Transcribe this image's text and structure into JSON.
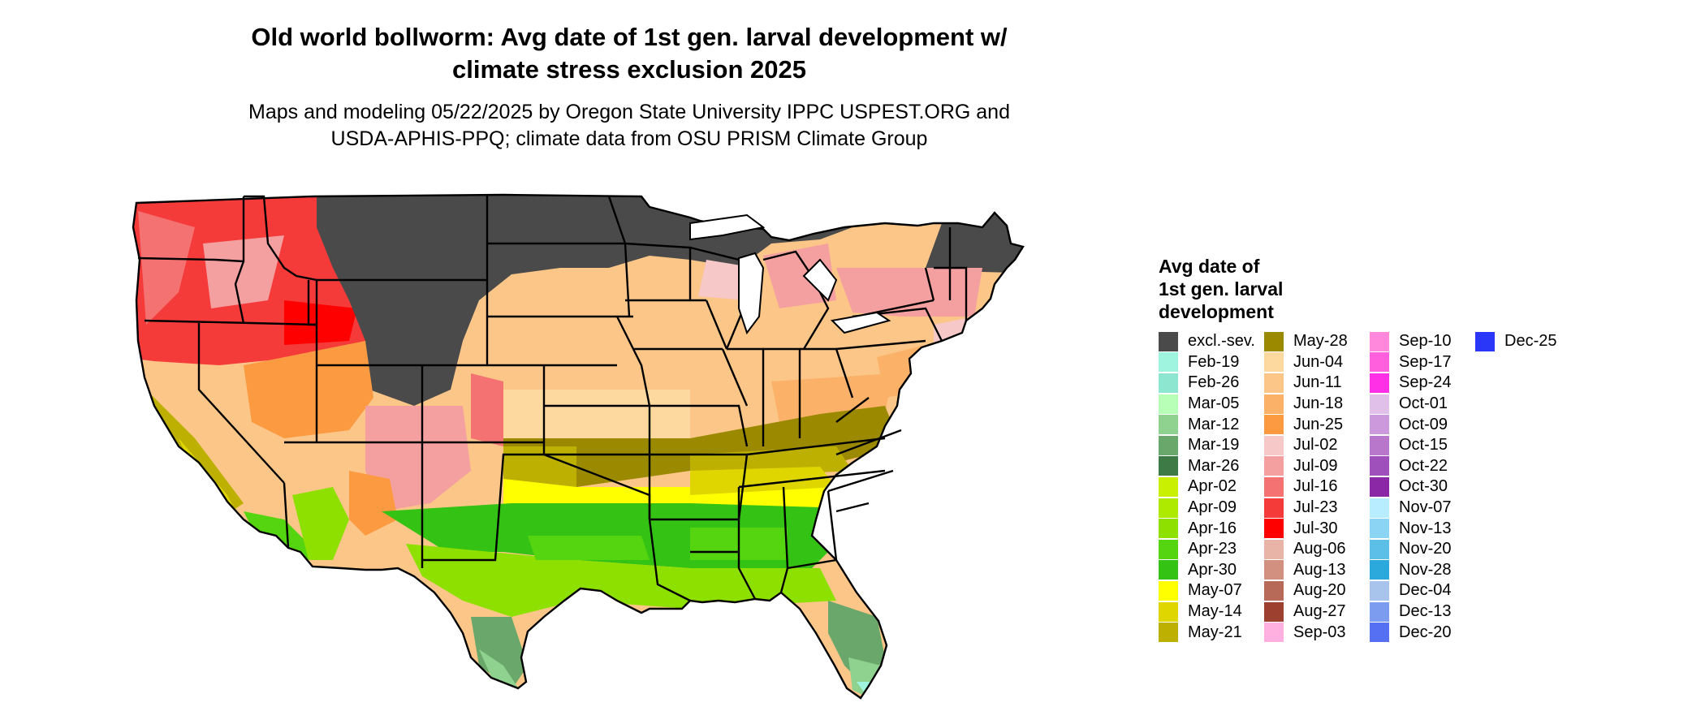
{
  "title_line1": "Old world bollworm: Avg date of 1st gen. larval development w/",
  "title_line2": "climate stress exclusion 2025",
  "subtitle_line1": "Maps and modeling 05/22/2025 by Oregon State University IPPC USPEST.ORG and",
  "subtitle_line2": "USDA-APHIS-PPQ; climate data from OSU PRISM Climate Group",
  "legend": {
    "title_line1": "Avg date of",
    "title_line2": "1st gen. larval",
    "title_line3": "development",
    "items": [
      {
        "label": "excl.-sev.",
        "color": "#4a4a4a"
      },
      {
        "label": "Feb-19",
        "color": "#9ff4e0"
      },
      {
        "label": "Feb-26",
        "color": "#8ce6d0"
      },
      {
        "label": "Mar-05",
        "color": "#b8ffb8"
      },
      {
        "label": "Mar-12",
        "color": "#8fd18f"
      },
      {
        "label": "Mar-19",
        "color": "#69a86a"
      },
      {
        "label": "Mar-26",
        "color": "#3e7a45"
      },
      {
        "label": "Apr-02",
        "color": "#c8f000"
      },
      {
        "label": "Apr-09",
        "color": "#aeea00"
      },
      {
        "label": "Apr-16",
        "color": "#8ee000"
      },
      {
        "label": "Apr-23",
        "color": "#55d410"
      },
      {
        "label": "Apr-30",
        "color": "#34c314"
      },
      {
        "label": "May-07",
        "color": "#ffff00"
      },
      {
        "label": "May-14",
        "color": "#dfd600"
      },
      {
        "label": "May-21",
        "color": "#bdb000"
      },
      {
        "label": "May-28",
        "color": "#9b8a00"
      },
      {
        "label": "Jun-04",
        "color": "#fdd9a0"
      },
      {
        "label": "Jun-11",
        "color": "#fcc688"
      },
      {
        "label": "Jun-18",
        "color": "#fbb268"
      },
      {
        "label": "Jun-25",
        "color": "#fb9a40"
      },
      {
        "label": "Jul-02",
        "color": "#f6c8c8"
      },
      {
        "label": "Jul-09",
        "color": "#f5a0a0"
      },
      {
        "label": "Jul-16",
        "color": "#f57272"
      },
      {
        "label": "Jul-23",
        "color": "#f53a3a"
      },
      {
        "label": "Jul-30",
        "color": "#ff0000"
      },
      {
        "label": "Aug-06",
        "color": "#e8b4a8"
      },
      {
        "label": "Aug-13",
        "color": "#d29080"
      },
      {
        "label": "Aug-20",
        "color": "#b86a58"
      },
      {
        "label": "Aug-27",
        "color": "#9e4030"
      },
      {
        "label": "Sep-03",
        "color": "#ffb0e0"
      },
      {
        "label": "Sep-10",
        "color": "#ff88dd"
      },
      {
        "label": "Sep-17",
        "color": "#ff5fdc"
      },
      {
        "label": "Sep-24",
        "color": "#ff30e6"
      },
      {
        "label": "Oct-01",
        "color": "#e0c0e8"
      },
      {
        "label": "Oct-09",
        "color": "#cc99dd"
      },
      {
        "label": "Oct-15",
        "color": "#b977cc"
      },
      {
        "label": "Oct-22",
        "color": "#a050bb"
      },
      {
        "label": "Oct-30",
        "color": "#8a28a6"
      },
      {
        "label": "Nov-07",
        "color": "#b8ecff"
      },
      {
        "label": "Nov-13",
        "color": "#8cd4f4"
      },
      {
        "label": "Nov-20",
        "color": "#5cbfe8"
      },
      {
        "label": "Nov-28",
        "color": "#2ba8dc"
      },
      {
        "label": "Dec-04",
        "color": "#a8c4ec"
      },
      {
        "label": "Dec-13",
        "color": "#7c9cf0"
      },
      {
        "label": "Dec-20",
        "color": "#5670f4"
      },
      {
        "label": "Dec-25",
        "color": "#2a36f8"
      }
    ]
  }
}
